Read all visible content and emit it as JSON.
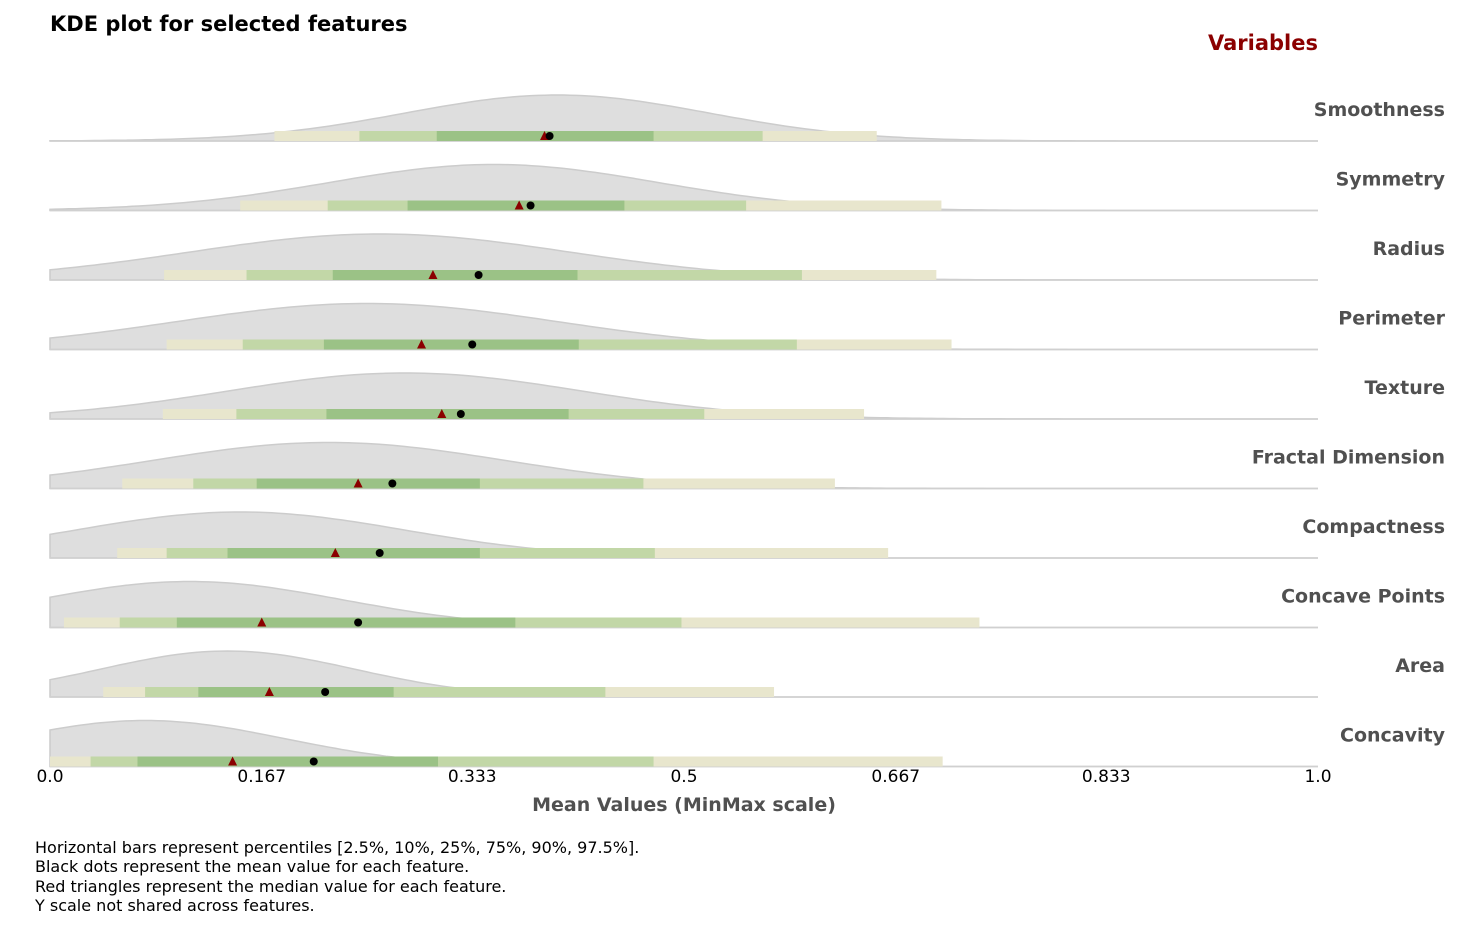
{
  "chart_data": {
    "type": "ridgeline-kde",
    "title": "KDE plot for selected features",
    "legend_heading": "Variables",
    "xlabel": "Mean Values  (MinMax scale)",
    "xlim": [
      0,
      1
    ],
    "x_ticks": [
      "0.0",
      "0.167",
      "0.333",
      "0.5",
      "0.667",
      "0.833",
      "1.0"
    ],
    "x_tick_values": [
      0,
      0.167,
      0.333,
      0.5,
      0.667,
      0.833,
      1.0
    ],
    "percentile_levels": [
      2.5,
      10,
      25,
      75,
      90,
      97.5
    ],
    "colors": {
      "kde_fill": "#dedede",
      "kde_line": "#cccccc",
      "outer_band": "#e8e6cd",
      "middle_band": "#c2d7a7",
      "inner_band": "#9bc286",
      "mean_marker": "#000000",
      "median_marker": "#8b0000",
      "legend_heading": "#8b0000",
      "row_label": "#505050"
    },
    "features": [
      {
        "name": "Smoothness",
        "percentiles": [
          0.177,
          0.244,
          0.305,
          0.476,
          0.562,
          0.652
        ],
        "mean": 0.394,
        "median": 0.39,
        "kde_peak": 0.4,
        "kde_spread": 0.12
      },
      {
        "name": "Symmetry",
        "percentiles": [
          0.15,
          0.219,
          0.282,
          0.453,
          0.549,
          0.703
        ],
        "mean": 0.379,
        "median": 0.37,
        "kde_peak": 0.35,
        "kde_spread": 0.13
      },
      {
        "name": "Radius",
        "percentiles": [
          0.09,
          0.155,
          0.223,
          0.416,
          0.593,
          0.699
        ],
        "mean": 0.338,
        "median": 0.302,
        "kde_peak": 0.26,
        "kde_spread": 0.15
      },
      {
        "name": "Perimeter",
        "percentiles": [
          0.092,
          0.152,
          0.216,
          0.417,
          0.589,
          0.711
        ],
        "mean": 0.333,
        "median": 0.293,
        "kde_peak": 0.25,
        "kde_spread": 0.15
      },
      {
        "name": "Texture",
        "percentiles": [
          0.089,
          0.147,
          0.218,
          0.409,
          0.516,
          0.642
        ],
        "mean": 0.324,
        "median": 0.309,
        "kde_peak": 0.28,
        "kde_spread": 0.14
      },
      {
        "name": "Fractal Dimension",
        "percentiles": [
          0.057,
          0.113,
          0.163,
          0.339,
          0.468,
          0.619
        ],
        "mean": 0.27,
        "median": 0.243,
        "kde_peak": 0.22,
        "kde_spread": 0.14
      },
      {
        "name": "Compactness",
        "percentiles": [
          0.053,
          0.092,
          0.14,
          0.339,
          0.477,
          0.661
        ],
        "mean": 0.26,
        "median": 0.225,
        "kde_peak": 0.15,
        "kde_spread": 0.13
      },
      {
        "name": "Concave Points",
        "percentiles": [
          0.011,
          0.055,
          0.1,
          0.367,
          0.498,
          0.733
        ],
        "mean": 0.243,
        "median": 0.167,
        "kde_peak": 0.11,
        "kde_spread": 0.12
      },
      {
        "name": "Area",
        "percentiles": [
          0.042,
          0.075,
          0.117,
          0.271,
          0.438,
          0.571
        ],
        "mean": 0.217,
        "median": 0.173,
        "kde_peak": 0.14,
        "kde_spread": 0.1
      },
      {
        "name": "Concavity",
        "percentiles": [
          0.0,
          0.032,
          0.069,
          0.306,
          0.476,
          0.704
        ],
        "mean": 0.208,
        "median": 0.144,
        "kde_peak": 0.075,
        "kde_spread": 0.11
      }
    ]
  },
  "notes": [
    "Horizontal bars represent percentiles [2.5%, 10%, 25%, 75%, 90%, 97.5%].",
    "Black dots represent the mean value for each feature.",
    "Red triangles represent the median value for each feature.",
    "Y scale not shared across features."
  ]
}
